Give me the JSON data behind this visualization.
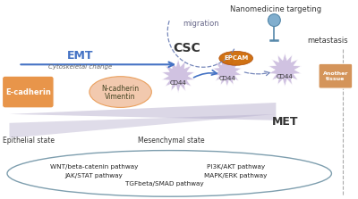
{
  "bg_color": "#ffffff",
  "emt_label": "EMT",
  "met_label": "MET",
  "csc_label": "CSC",
  "migration_label": "migration",
  "metastasis_label": "metastasis",
  "nanomedicine_label": "Nanomedicine targeting",
  "cytoskeletal_label": "Cytoskeletal change",
  "epithelial_label": "Epithelial state",
  "mesenchymal_label": "Mesenchymal state",
  "ecadherin_label": "E-cadherin",
  "ncadherin_label": "N-cadherin",
  "vimentin_label": "Vimentin",
  "another_tissue_label": "Another\ntissue",
  "cd44_label": "CD44",
  "epcam_label": "EPCAM",
  "orange_color": "#E8954A",
  "light_peach": "#F0C0A0",
  "purple_gray": "#B0A8C8",
  "blue_dark": "#4472C4",
  "star_color": "#C8B8DC",
  "epcam_color": "#CC6600",
  "tissue_color": "#D4945A",
  "nano_color": "#80AECE",
  "pathway_left_1": "WNT/beta-catenin pathway",
  "pathway_left_2": "JAK/STAT pathway",
  "pathway_right_1": "PI3K/AKT pathway",
  "pathway_right_2": "MAPK/ERK pathway",
  "pathway_center": "TGFbeta/SMAD pathway"
}
